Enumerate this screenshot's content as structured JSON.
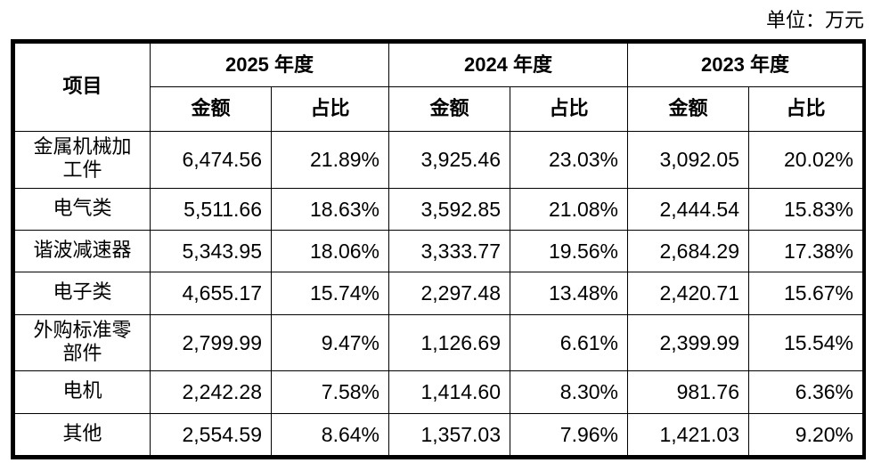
{
  "unit_label": "单位：万元",
  "header": {
    "project": "项目",
    "years": [
      "2025 年度",
      "2024 年度",
      "2023 年度"
    ],
    "amount": "金额",
    "ratio": "占比"
  },
  "rows": [
    {
      "name": "金属机械加工件",
      "values": [
        "6,474.56",
        "21.89%",
        "3,925.46",
        "23.03%",
        "3,092.05",
        "20.02%"
      ]
    },
    {
      "name": "电气类",
      "values": [
        "5,511.66",
        "18.63%",
        "3,592.85",
        "21.08%",
        "2,444.54",
        "15.83%"
      ]
    },
    {
      "name": "谐波减速器",
      "values": [
        "5,343.95",
        "18.06%",
        "3,333.77",
        "19.56%",
        "2,684.29",
        "17.38%"
      ]
    },
    {
      "name": "电子类",
      "values": [
        "4,655.17",
        "15.74%",
        "2,297.48",
        "13.48%",
        "2,420.71",
        "15.67%"
      ]
    },
    {
      "name": "外购标准零部件",
      "values": [
        "2,799.99",
        "9.47%",
        "1,126.69",
        "6.61%",
        "2,399.99",
        "15.54%"
      ]
    },
    {
      "name": "电机",
      "values": [
        "2,242.28",
        "7.58%",
        "1,414.60",
        "8.30%",
        "981.76",
        "6.36%"
      ]
    },
    {
      "name": "其他",
      "values": [
        "2,554.59",
        "8.64%",
        "1,357.03",
        "7.96%",
        "1,421.03",
        "9.20%"
      ]
    }
  ]
}
